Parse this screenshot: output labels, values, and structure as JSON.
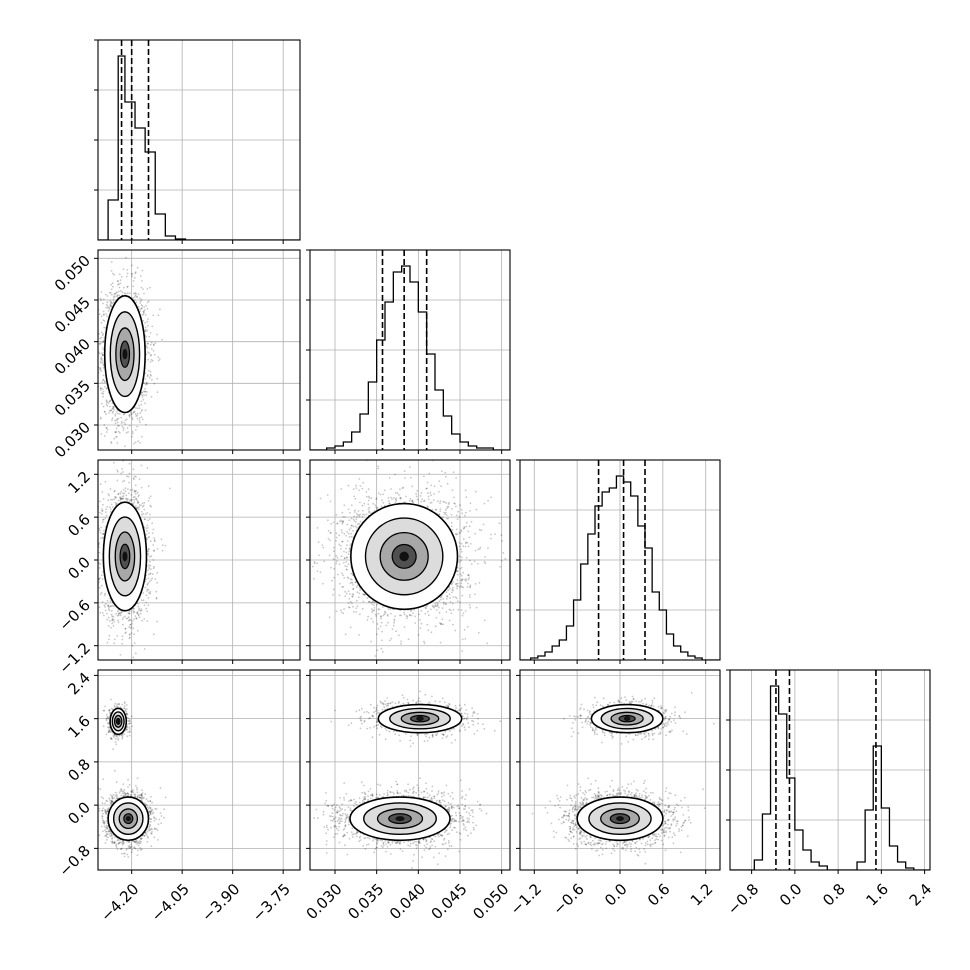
{
  "chart_data": [
    {
      "type": "histogram",
      "panel": "hist-p1",
      "xlim": [
        -4.3,
        -3.7
      ],
      "ylim": [
        0,
        1
      ],
      "xticks": [],
      "yticks": [],
      "bins": [
        [
          -4.3,
          -4.27,
          0.0
        ],
        [
          -4.27,
          -4.24,
          0.2
        ],
        [
          -4.24,
          -4.22,
          0.92
        ],
        [
          -4.22,
          -4.19,
          0.69
        ],
        [
          -4.19,
          -4.16,
          0.56
        ],
        [
          -4.16,
          -4.13,
          0.44
        ],
        [
          -4.13,
          -4.1,
          0.13
        ],
        [
          -4.1,
          -4.07,
          0.02
        ],
        [
          -4.07,
          -4.04,
          0.005
        ]
      ],
      "quantiles": [
        -4.23,
        -4.2,
        -4.15
      ]
    },
    {
      "type": "scatter-density",
      "panel": "2d-p1-p2",
      "xlim": [
        -4.3,
        -3.7
      ],
      "ylim": [
        0.027,
        0.051
      ],
      "xticks": [],
      "yticks": [
        "0.030",
        "0.035",
        "0.040",
        "0.045",
        "0.050"
      ],
      "clusters": [
        {
          "cx": -4.22,
          "cy": 0.0385,
          "sx": 0.03,
          "sy": 0.0035,
          "n": 2200
        }
      ]
    },
    {
      "type": "histogram",
      "panel": "hist-p2",
      "xlim": [
        0.027,
        0.051
      ],
      "ylim": [
        0,
        1
      ],
      "xticks": [],
      "yticks": [],
      "bins": [
        [
          0.029,
          0.03,
          0.01
        ],
        [
          0.03,
          0.031,
          0.02
        ],
        [
          0.031,
          0.032,
          0.04
        ],
        [
          0.032,
          0.033,
          0.09
        ],
        [
          0.033,
          0.034,
          0.18
        ],
        [
          0.034,
          0.035,
          0.34
        ],
        [
          0.035,
          0.036,
          0.55
        ],
        [
          0.036,
          0.037,
          0.74
        ],
        [
          0.037,
          0.038,
          0.89
        ],
        [
          0.038,
          0.039,
          0.92
        ],
        [
          0.039,
          0.04,
          0.84
        ],
        [
          0.04,
          0.041,
          0.69
        ],
        [
          0.041,
          0.042,
          0.48
        ],
        [
          0.042,
          0.043,
          0.3
        ],
        [
          0.043,
          0.044,
          0.17
        ],
        [
          0.044,
          0.045,
          0.08
        ],
        [
          0.045,
          0.046,
          0.04
        ],
        [
          0.046,
          0.047,
          0.02
        ],
        [
          0.047,
          0.049,
          0.01
        ]
      ],
      "quantiles": [
        0.0357,
        0.0383,
        0.041
      ]
    },
    {
      "type": "scatter-density",
      "panel": "2d-p1-p3",
      "xlim": [
        -4.3,
        -3.7
      ],
      "ylim": [
        -1.4,
        1.4
      ],
      "xticks": [],
      "yticks": [
        "1.2",
        "0.6",
        "0.0",
        "−0.6",
        "−1.2"
      ],
      "clusters": [
        {
          "cx": -4.22,
          "cy": 0.05,
          "sx": 0.032,
          "sy": 0.38,
          "n": 2200
        }
      ]
    },
    {
      "type": "scatter-density",
      "panel": "2d-p2-p3",
      "xlim": [
        0.027,
        0.051
      ],
      "ylim": [
        -1.4,
        1.4
      ],
      "xticks": [],
      "yticks": [],
      "clusters": [
        {
          "cx": 0.0383,
          "cy": 0.05,
          "sx": 0.0032,
          "sy": 0.37,
          "n": 3200
        }
      ]
    },
    {
      "type": "histogram",
      "panel": "hist-p3",
      "xlim": [
        -1.4,
        1.4
      ],
      "ylim": [
        0,
        1
      ],
      "xticks": [],
      "yticks": [],
      "bins": [
        [
          -1.25,
          -1.15,
          0.01
        ],
        [
          -1.15,
          -1.05,
          0.02
        ],
        [
          -1.05,
          -0.95,
          0.04
        ],
        [
          -0.95,
          -0.85,
          0.07
        ],
        [
          -0.85,
          -0.75,
          0.1
        ],
        [
          -0.75,
          -0.65,
          0.17
        ],
        [
          -0.65,
          -0.55,
          0.3
        ],
        [
          -0.55,
          -0.45,
          0.48
        ],
        [
          -0.45,
          -0.35,
          0.63
        ],
        [
          -0.35,
          -0.25,
          0.77
        ],
        [
          -0.25,
          -0.15,
          0.84
        ],
        [
          -0.15,
          -0.05,
          0.86
        ],
        [
          -0.05,
          0.05,
          0.92
        ],
        [
          0.05,
          0.15,
          0.89
        ],
        [
          0.15,
          0.25,
          0.82
        ],
        [
          0.25,
          0.35,
          0.67
        ],
        [
          0.35,
          0.45,
          0.56
        ],
        [
          0.45,
          0.55,
          0.34
        ],
        [
          0.55,
          0.65,
          0.25
        ],
        [
          0.65,
          0.75,
          0.13
        ],
        [
          0.75,
          0.85,
          0.07
        ],
        [
          0.85,
          0.95,
          0.04
        ],
        [
          0.95,
          1.05,
          0.02
        ],
        [
          1.05,
          1.15,
          0.01
        ]
      ],
      "quantiles": [
        -0.3,
        0.05,
        0.35
      ]
    },
    {
      "type": "scatter-density",
      "panel": "2d-p1-p4",
      "xlim": [
        -4.3,
        -3.7
      ],
      "ylim": [
        -1.2,
        2.5
      ],
      "xticks": [
        "−4.20",
        "−4.05",
        "−3.90",
        "−3.75"
      ],
      "yticks": [
        "2.4",
        "1.6",
        "0.8",
        "0.0",
        "−0.8"
      ],
      "clusters": [
        {
          "cx": -4.21,
          "cy": -0.25,
          "sx": 0.03,
          "sy": 0.2,
          "n": 1700
        },
        {
          "cx": -4.24,
          "cy": 1.55,
          "sx": 0.012,
          "sy": 0.12,
          "n": 600
        }
      ]
    },
    {
      "type": "scatter-density",
      "panel": "2d-p2-p4",
      "xlim": [
        0.027,
        0.051
      ],
      "ylim": [
        -1.2,
        2.5
      ],
      "xticks": [
        "0.030",
        "0.035",
        "0.040",
        "0.045",
        "0.050"
      ],
      "yticks": [],
      "clusters": [
        {
          "cx": 0.0378,
          "cy": -0.25,
          "sx": 0.003,
          "sy": 0.2,
          "n": 2400
        },
        {
          "cx": 0.0402,
          "cy": 1.6,
          "sx": 0.0025,
          "sy": 0.13,
          "n": 1100
        }
      ]
    },
    {
      "type": "scatter-density",
      "panel": "2d-p3-p4",
      "xlim": [
        -1.4,
        1.4
      ],
      "ylim": [
        -1.2,
        2.5
      ],
      "xticks": [
        "−1.2",
        "−0.6",
        "0.0",
        "0.6",
        "1.2"
      ],
      "yticks": [],
      "clusters": [
        {
          "cx": 0.0,
          "cy": -0.25,
          "sx": 0.3,
          "sy": 0.2,
          "n": 2400
        },
        {
          "cx": 0.1,
          "cy": 1.6,
          "sx": 0.25,
          "sy": 0.13,
          "n": 1100
        }
      ]
    },
    {
      "type": "histogram",
      "panel": "hist-p4",
      "xlim": [
        -1.2,
        2.5
      ],
      "ylim": [
        0,
        1
      ],
      "xticks": [
        "−0.8",
        "0.0",
        "0.8",
        "1.6",
        "2.4"
      ],
      "yticks": [],
      "bins": [
        [
          -0.75,
          -0.6,
          0.05
        ],
        [
          -0.6,
          -0.45,
          0.28
        ],
        [
          -0.45,
          -0.3,
          0.92
        ],
        [
          -0.3,
          -0.15,
          0.78
        ],
        [
          -0.15,
          0.0,
          0.46
        ],
        [
          0.0,
          0.15,
          0.2
        ],
        [
          0.15,
          0.3,
          0.1
        ],
        [
          0.3,
          0.45,
          0.04
        ],
        [
          0.45,
          0.6,
          0.02
        ],
        [
          1.15,
          1.3,
          0.04
        ],
        [
          1.3,
          1.45,
          0.3
        ],
        [
          1.45,
          1.6,
          0.62
        ],
        [
          1.6,
          1.75,
          0.31
        ],
        [
          1.75,
          1.9,
          0.12
        ],
        [
          1.9,
          2.05,
          0.04
        ],
        [
          2.05,
          2.2,
          0.01
        ]
      ],
      "quantiles": [
        -0.35,
        -0.1,
        1.5
      ]
    }
  ]
}
